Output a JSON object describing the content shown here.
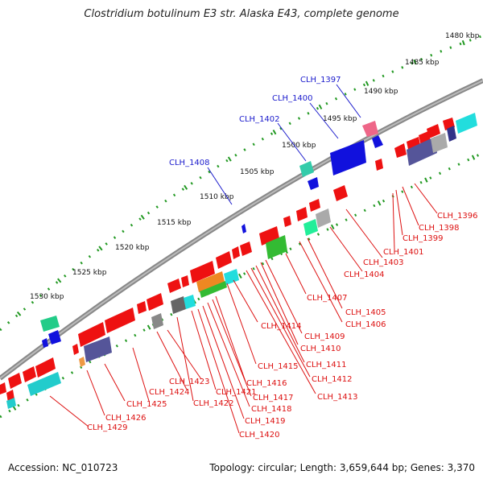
{
  "title": "Clostridium botulinum E3 str. Alaska E43, complete genome",
  "footer": {
    "accession": "Accession: NC_010723",
    "summary": "Topology: circular; Length: 3,659,644 bp; Genes: 3,370"
  },
  "ticks": [
    "1480 kbp",
    "1485 kbp",
    "1490 kbp",
    "1495 kbp",
    "1500 kbp",
    "1505 kbp",
    "1510 kbp",
    "1515 kbp",
    "1520 kbp",
    "1525 kbp",
    "1530 kbp"
  ],
  "blue_labels": [
    "CLH_1397",
    "CLH_1400",
    "CLH_1402",
    "CLH_1408"
  ],
  "red_labels": [
    "CLH_1396",
    "CLH_1398",
    "CLH_1399",
    "CLH_1401",
    "CLH_1403",
    "CLH_1404",
    "CLH_1405",
    "CLH_1406",
    "CLH_1407",
    "CLH_1409",
    "CLH_1410",
    "CLH_1411",
    "CLH_1412",
    "CLH_1413",
    "CLH_1414",
    "CLH_1415",
    "CLH_1416",
    "CLH_1417",
    "CLH_1418",
    "CLH_1419",
    "CLH_1420",
    "CLH_1421",
    "CLH_1422",
    "CLH_1423",
    "CLH_1424",
    "CLH_1425",
    "CLH_1426",
    "CLH_1429"
  ],
  "colors": {
    "backbone": "#888888",
    "forward_strand": "#1111dd",
    "reverse_strand": "#ee1111",
    "tick_dot": "#229922",
    "label_red": "#dd1111",
    "label_blue": "#1a1acc"
  }
}
